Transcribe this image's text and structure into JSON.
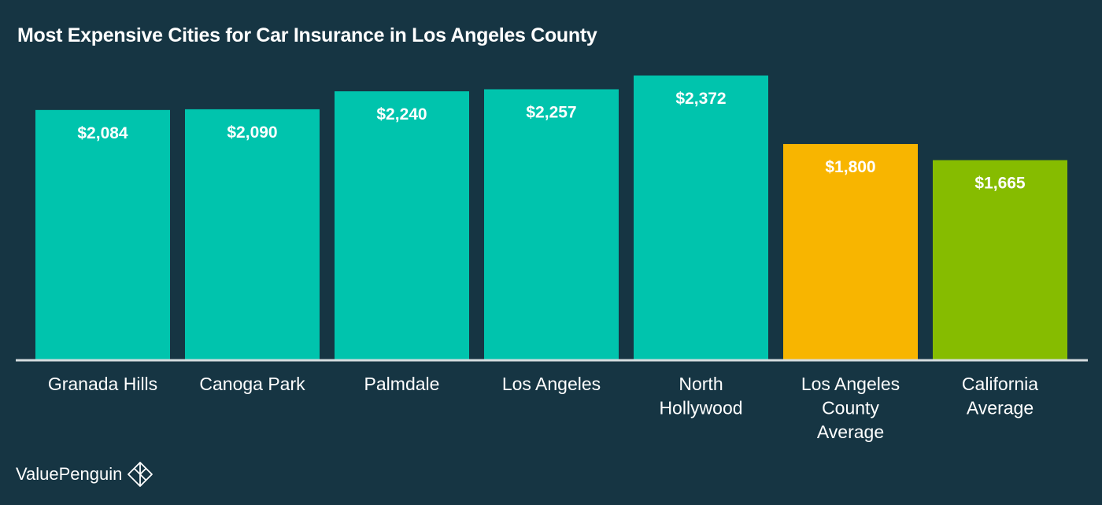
{
  "chart_data": {
    "type": "bar",
    "title": "Most Expensive Cities for Car Insurance in Los Angeles County",
    "xlabel": "",
    "ylabel": "",
    "ylim": [
      0,
      2600
    ],
    "grid": false,
    "categories": [
      [
        "Granada Hills"
      ],
      [
        "Canoga Park"
      ],
      [
        "Palmdale"
      ],
      [
        "Los Angeles"
      ],
      [
        "North",
        "Hollywood"
      ],
      [
        "Los Angeles",
        "County",
        "Average"
      ],
      [
        "California",
        "Average"
      ]
    ],
    "values": [
      2084,
      2090,
      2240,
      2257,
      2372,
      1800,
      1665
    ],
    "value_labels": [
      "$2,084",
      "$2,090",
      "$2,240",
      "$2,257",
      "$2,372",
      "$1,800",
      "$1,665"
    ],
    "colors": [
      "#00c4ad",
      "#00c4ad",
      "#00c4ad",
      "#00c4ad",
      "#00c4ad",
      "#f8b500",
      "#86bc00"
    ]
  },
  "brand": {
    "name": "ValuePenguin",
    "icon": "valuepenguin-logo-icon"
  }
}
